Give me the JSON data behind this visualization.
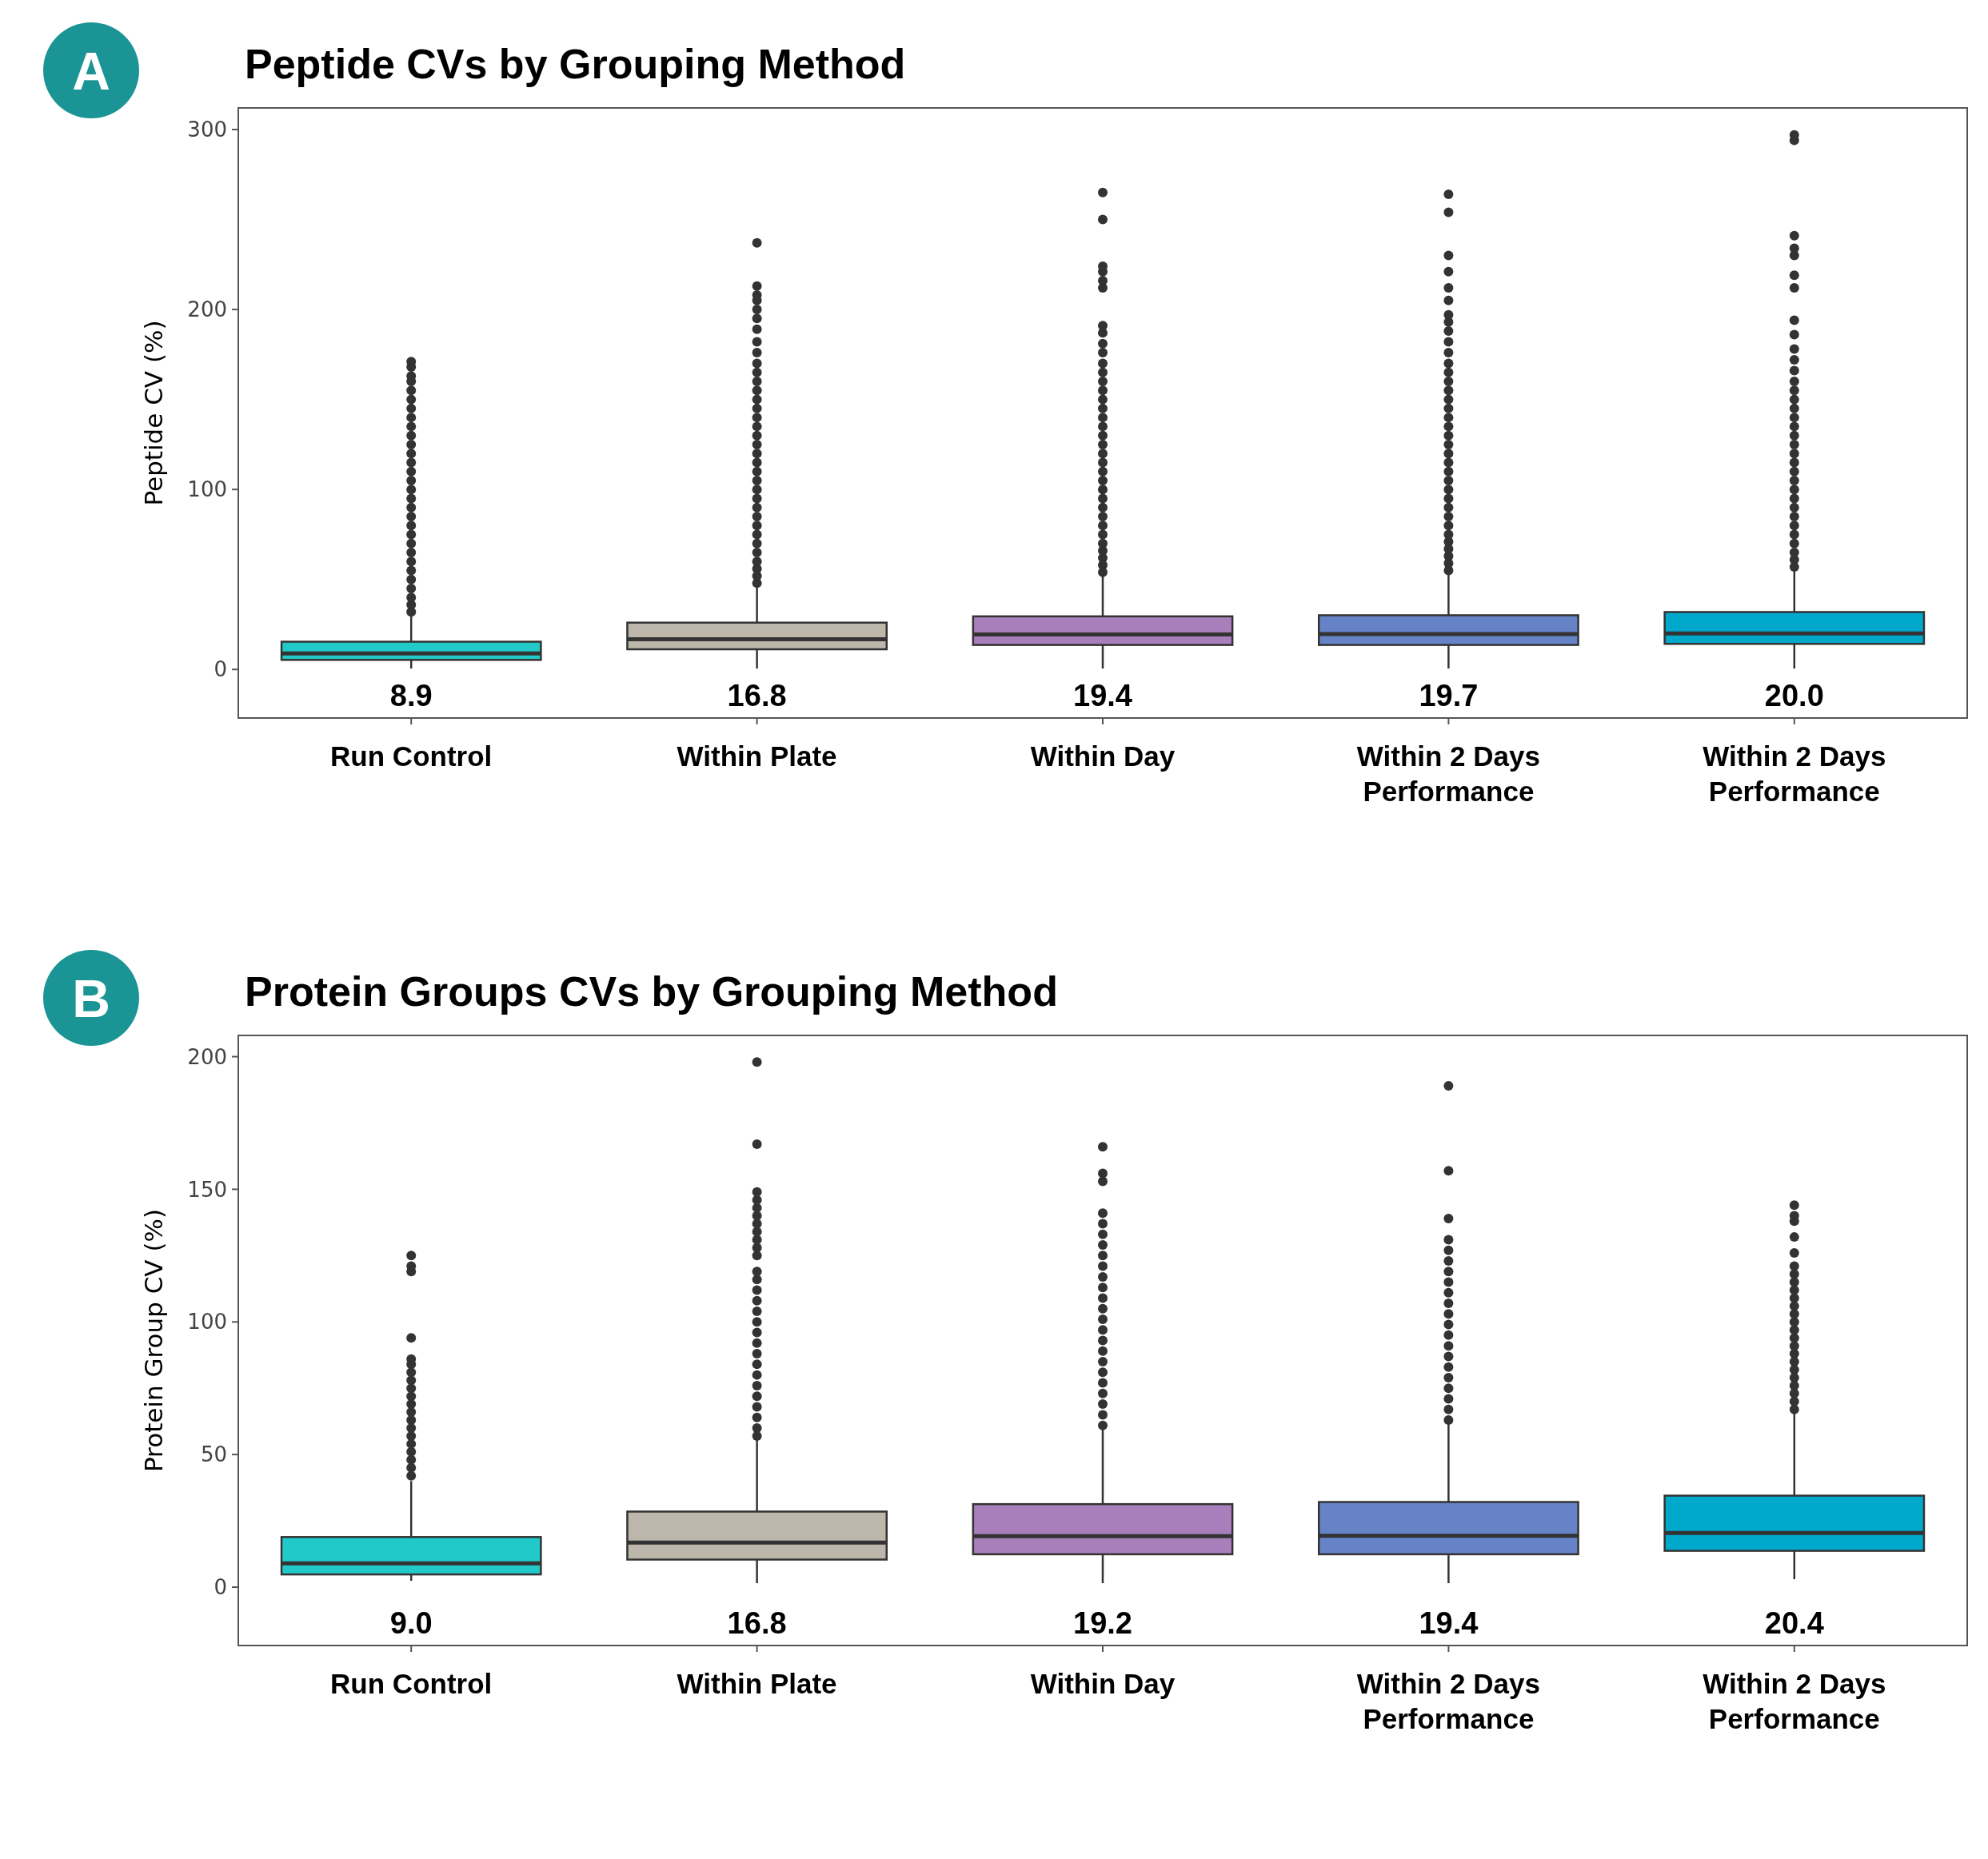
{
  "chart_data": [
    {
      "type": "box",
      "title": "Peptide CVs by Grouping Method",
      "ylabel": "Peptide CV (%)",
      "categories": [
        "Run Control",
        "Within Plate",
        "Within Day",
        "Within 2 Days Performance",
        "Within 2 Days Performance"
      ],
      "colors": [
        "#22c9c9",
        "#bdb6ab",
        "#a97fbb",
        "#6683c8",
        "#00a9cc"
      ],
      "ylim": [
        -27,
        312
      ],
      "yticks": [
        0,
        100,
        200,
        300
      ],
      "grid": false,
      "annotations": [
        "A",
        "8.9",
        "16.8",
        "19.4",
        "19.7",
        "20.0"
      ],
      "boxes": [
        {
          "low": 0.5,
          "q1": 5.3,
          "median": 8.9,
          "q3": 15.4,
          "high": 30.7,
          "outliers": [
            32,
            36,
            40,
            45,
            50,
            55,
            60,
            65,
            70,
            75,
            80,
            85,
            90,
            95,
            100,
            105,
            110,
            115,
            120,
            125,
            130,
            135,
            140,
            145,
            150,
            155,
            160,
            163,
            168,
            171
          ]
        },
        {
          "low": 0.5,
          "q1": 11.2,
          "median": 16.8,
          "q3": 26,
          "high": 47.3,
          "outliers": [
            48,
            52,
            56,
            60,
            65,
            70,
            75,
            80,
            85,
            90,
            95,
            100,
            105,
            110,
            115,
            120,
            125,
            130,
            135,
            140,
            145,
            150,
            155,
            160,
            165,
            170,
            176,
            182,
            189,
            195,
            200,
            205,
            208,
            213,
            237
          ]
        },
        {
          "low": 0.5,
          "q1": 13.6,
          "median": 19.4,
          "q3": 29.5,
          "high": 53,
          "outliers": [
            54,
            58,
            62,
            66,
            70,
            75,
            80,
            85,
            90,
            95,
            100,
            105,
            110,
            115,
            120,
            125,
            130,
            135,
            140,
            145,
            150,
            155,
            160,
            165,
            170,
            176,
            181,
            187,
            191,
            212,
            216,
            221,
            224,
            250,
            265
          ]
        },
        {
          "low": 0.5,
          "q1": 13.6,
          "median": 19.7,
          "q3": 30.1,
          "high": 54.3,
          "outliers": [
            55,
            59,
            63,
            67,
            71,
            75,
            80,
            85,
            90,
            95,
            100,
            105,
            110,
            115,
            120,
            125,
            130,
            135,
            140,
            145,
            150,
            155,
            160,
            165,
            170,
            176,
            182,
            188,
            193,
            197,
            205,
            212,
            221,
            230,
            254,
            264
          ]
        },
        {
          "low": 0.5,
          "q1": 14.2,
          "median": 20.0,
          "q3": 31.9,
          "high": 55.5,
          "outliers": [
            57,
            61,
            65,
            70,
            75,
            80,
            85,
            90,
            95,
            100,
            105,
            110,
            115,
            120,
            125,
            130,
            135,
            140,
            145,
            150,
            155,
            160,
            166,
            172,
            178,
            186,
            194,
            212,
            219,
            230,
            234,
            241,
            294,
            297
          ]
        }
      ]
    },
    {
      "type": "box",
      "title": "Protein Groups CVs by Grouping Method",
      "ylabel": "Protein Group CV (%)",
      "categories": [
        "Run Control",
        "Within Plate",
        "Within Day",
        "Within 2 Days Performance",
        "Within 2 Days Performance"
      ],
      "colors": [
        "#22c9c9",
        "#bdb6ab",
        "#a97fbb",
        "#6683c8",
        "#00a9cc"
      ],
      "ylim": [
        -22,
        208
      ],
      "yticks": [
        0,
        50,
        100,
        150,
        200
      ],
      "grid": false,
      "annotations": [
        "B",
        "9.0",
        "16.8",
        "19.2",
        "19.4",
        "20.4"
      ],
      "boxes": [
        {
          "low": 2.4,
          "q1": 4.8,
          "median": 9.0,
          "q3": 18.9,
          "high": 40,
          "outliers": [
            42,
            45,
            48,
            51,
            54,
            57,
            60,
            63,
            66,
            69,
            72,
            75,
            78,
            81,
            84,
            86,
            94,
            119,
            121,
            125
          ]
        },
        {
          "low": 1.5,
          "q1": 10.4,
          "median": 16.8,
          "q3": 28.5,
          "high": 55.8,
          "outliers": [
            57,
            60,
            64,
            68,
            72,
            76,
            80,
            84,
            88,
            92,
            96,
            100,
            104,
            108,
            112,
            116,
            119,
            125,
            128,
            131,
            134,
            137,
            140,
            143,
            146,
            149,
            167,
            198
          ]
        },
        {
          "low": 1.5,
          "q1": 12.4,
          "median": 19.2,
          "q3": 31.3,
          "high": 59.8,
          "outliers": [
            61,
            65,
            69,
            73,
            77,
            81,
            85,
            89,
            93,
            97,
            101,
            105,
            109,
            113,
            117,
            121,
            125,
            129,
            133,
            137,
            141,
            153,
            156,
            166
          ]
        },
        {
          "low": 1.5,
          "q1": 12.4,
          "median": 19.4,
          "q3": 32.1,
          "high": 61.5,
          "outliers": [
            63,
            67,
            71,
            75,
            79,
            83,
            87,
            91,
            95,
            99,
            103,
            107,
            111,
            115,
            119,
            123,
            127,
            131,
            139,
            157,
            189
          ]
        },
        {
          "low": 3,
          "q1": 13.7,
          "median": 20.4,
          "q3": 34.5,
          "high": 66,
          "outliers": [
            67,
            70,
            73,
            76,
            79,
            82,
            85,
            88,
            91,
            94,
            97,
            100,
            103,
            106,
            109,
            112,
            115,
            118,
            121,
            126,
            132,
            138,
            140,
            144
          ]
        }
      ]
    }
  ]
}
